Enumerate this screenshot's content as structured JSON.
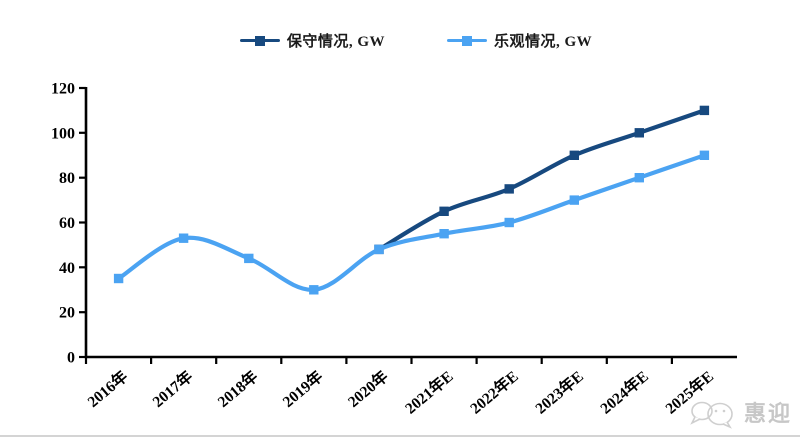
{
  "legend": [
    {
      "label": "保守情况, GW",
      "color": "#17497F"
    },
    {
      "label": "乐观情况, GW",
      "color": "#4BA3F2"
    }
  ],
  "watermark": {
    "icon": "chat-bubbles-icon",
    "text": "惠迎"
  },
  "colors": {
    "axis": "#000000",
    "background": "#ffffff",
    "watermark_gray": "#c7c7c7",
    "divider_gray": "#d4d4d4"
  },
  "chart_data": {
    "type": "line",
    "title": "",
    "xlabel": "",
    "ylabel": "",
    "categories": [
      "2016年",
      "2017年",
      "2018年",
      "2019年",
      "2020年",
      "2021年E",
      "2022年E",
      "2023年E",
      "2024年E",
      "2025年E"
    ],
    "series": [
      {
        "name": "保守情况, GW",
        "color": "#17497F",
        "values": [
          null,
          null,
          null,
          null,
          48,
          65,
          75,
          90,
          100,
          110
        ]
      },
      {
        "name": "乐观情况, GW",
        "color": "#4BA3F2",
        "values": [
          35,
          53,
          44,
          30,
          48,
          55,
          60,
          70,
          80,
          90
        ]
      }
    ],
    "ylim": [
      0,
      120
    ],
    "yticks": [
      0,
      20,
      40,
      60,
      80,
      100,
      120
    ],
    "grid": false,
    "smoothed": true,
    "marker": "square",
    "legend_position": "top"
  }
}
